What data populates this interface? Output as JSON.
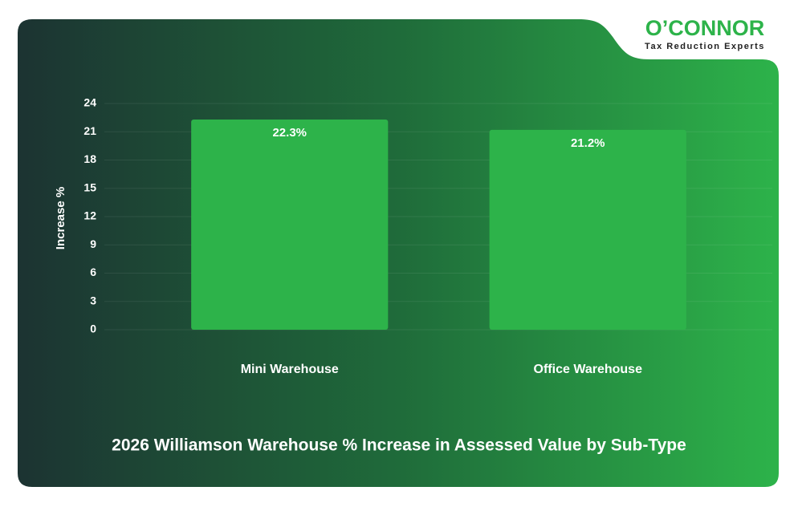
{
  "logo": {
    "name": "O’CONNOR",
    "tagline": "Tax Reduction Experts"
  },
  "chart_data": {
    "type": "bar",
    "title": "2026 Williamson Warehouse % Increase in Assessed Value by Sub-Type",
    "y_label": "Increase %",
    "categories": [
      "Mini Warehouse",
      "Office Warehouse"
    ],
    "values": [
      22.3,
      21.2
    ],
    "value_labels": [
      "22.3%",
      "21.2%"
    ],
    "color": "#2db34a",
    "ylim": [
      0,
      24
    ],
    "yticks": [
      0,
      3,
      6,
      9,
      12,
      15,
      18,
      21,
      24
    ],
    "grid": true
  }
}
